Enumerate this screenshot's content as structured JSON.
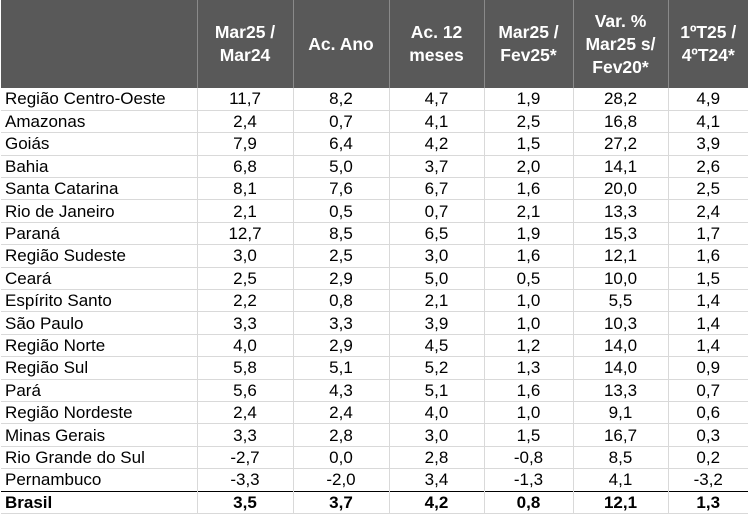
{
  "table": {
    "headers": [
      "",
      "Mar25 /\nMar24",
      "Ac. Ano",
      "Ac. 12\nmeses",
      "Mar25 /\nFev25*",
      "Var. %\nMar25 s/\nFev20*",
      "1ºT25 /\n4ºT24*"
    ],
    "rows": [
      {
        "name": "Região Centro-Oeste",
        "values": [
          "11,7",
          "8,2",
          "4,7",
          "1,9",
          "28,2",
          "4,9"
        ]
      },
      {
        "name": "Amazonas",
        "values": [
          "2,4",
          "0,7",
          "4,1",
          "2,5",
          "16,8",
          "4,1"
        ]
      },
      {
        "name": "Goiás",
        "values": [
          "7,9",
          "6,4",
          "4,2",
          "1,5",
          "27,2",
          "3,9"
        ]
      },
      {
        "name": "Bahia",
        "values": [
          "6,8",
          "5,0",
          "3,7",
          "2,0",
          "14,1",
          "2,6"
        ]
      },
      {
        "name": "Santa Catarina",
        "values": [
          "8,1",
          "7,6",
          "6,7",
          "1,6",
          "20,0",
          "2,5"
        ]
      },
      {
        "name": "Rio de Janeiro",
        "values": [
          "2,1",
          "0,5",
          "0,7",
          "2,1",
          "13,3",
          "2,4"
        ]
      },
      {
        "name": "Paraná",
        "values": [
          "12,7",
          "8,5",
          "6,5",
          "1,9",
          "15,3",
          "1,7"
        ]
      },
      {
        "name": "Região Sudeste",
        "values": [
          "3,0",
          "2,5",
          "3,0",
          "1,6",
          "12,1",
          "1,6"
        ]
      },
      {
        "name": "Ceará",
        "values": [
          "2,5",
          "2,9",
          "5,0",
          "0,5",
          "10,0",
          "1,5"
        ]
      },
      {
        "name": "Espírito Santo",
        "values": [
          "2,2",
          "0,8",
          "2,1",
          "1,0",
          "5,5",
          "1,4"
        ]
      },
      {
        "name": "São Paulo",
        "values": [
          "3,3",
          "3,3",
          "3,9",
          "1,0",
          "10,3",
          "1,4"
        ]
      },
      {
        "name": "Região Norte",
        "values": [
          "4,0",
          "2,9",
          "4,5",
          "1,2",
          "14,0",
          "1,4"
        ]
      },
      {
        "name": "Região Sul",
        "values": [
          "5,8",
          "5,1",
          "5,2",
          "1,3",
          "14,0",
          "0,9"
        ]
      },
      {
        "name": "Pará",
        "values": [
          "5,6",
          "4,3",
          "5,1",
          "1,6",
          "13,3",
          "0,7"
        ]
      },
      {
        "name": "Região Nordeste",
        "values": [
          "2,4",
          "2,4",
          "4,0",
          "1,0",
          "9,1",
          "0,6"
        ]
      },
      {
        "name": "Minas Gerais",
        "values": [
          "3,3",
          "2,8",
          "3,0",
          "1,5",
          "16,7",
          "0,3"
        ]
      },
      {
        "name": "Rio Grande do Sul",
        "values": [
          "-2,7",
          "0,0",
          "2,8",
          "-0,8",
          "8,5",
          "0,2"
        ]
      },
      {
        "name": "Pernambuco",
        "values": [
          "-3,3",
          "-2,0",
          "3,4",
          "-1,3",
          "4,1",
          "-3,2"
        ]
      }
    ],
    "total": {
      "name": "Brasil",
      "values": [
        "3,5",
        "3,7",
        "4,2",
        "0,8",
        "12,1",
        "1,3"
      ]
    }
  }
}
